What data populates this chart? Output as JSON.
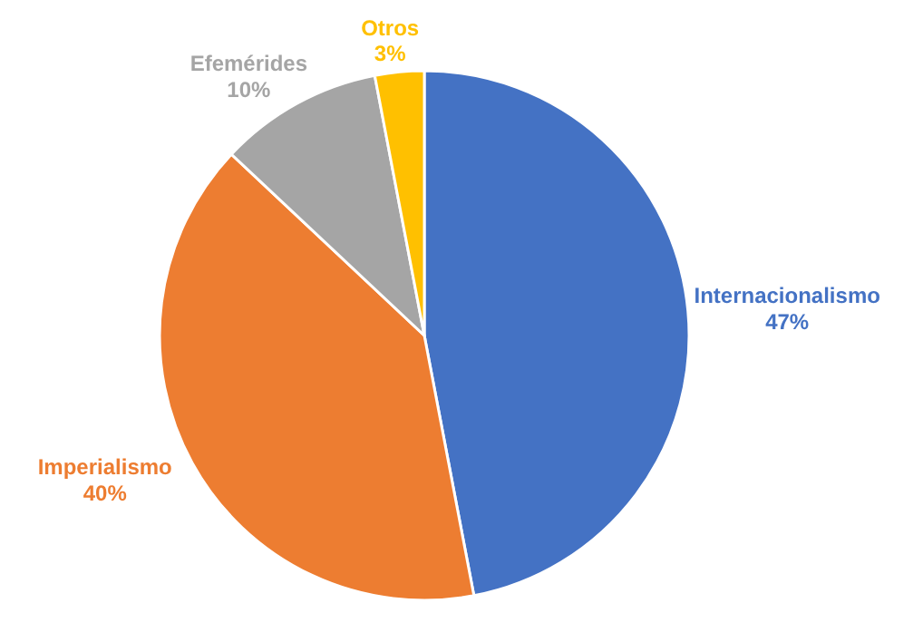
{
  "chart_data": {
    "type": "pie",
    "categories": [
      "Internacionalismo",
      "Imperialismo",
      "Efemérides",
      "Otros"
    ],
    "values": [
      47,
      40,
      10,
      3
    ],
    "value_labels": [
      "47%",
      "40%",
      "10%",
      "3%"
    ],
    "colors": [
      "#4472c4",
      "#ed7d31",
      "#a5a5a5",
      "#ffc000"
    ],
    "legend": false
  }
}
